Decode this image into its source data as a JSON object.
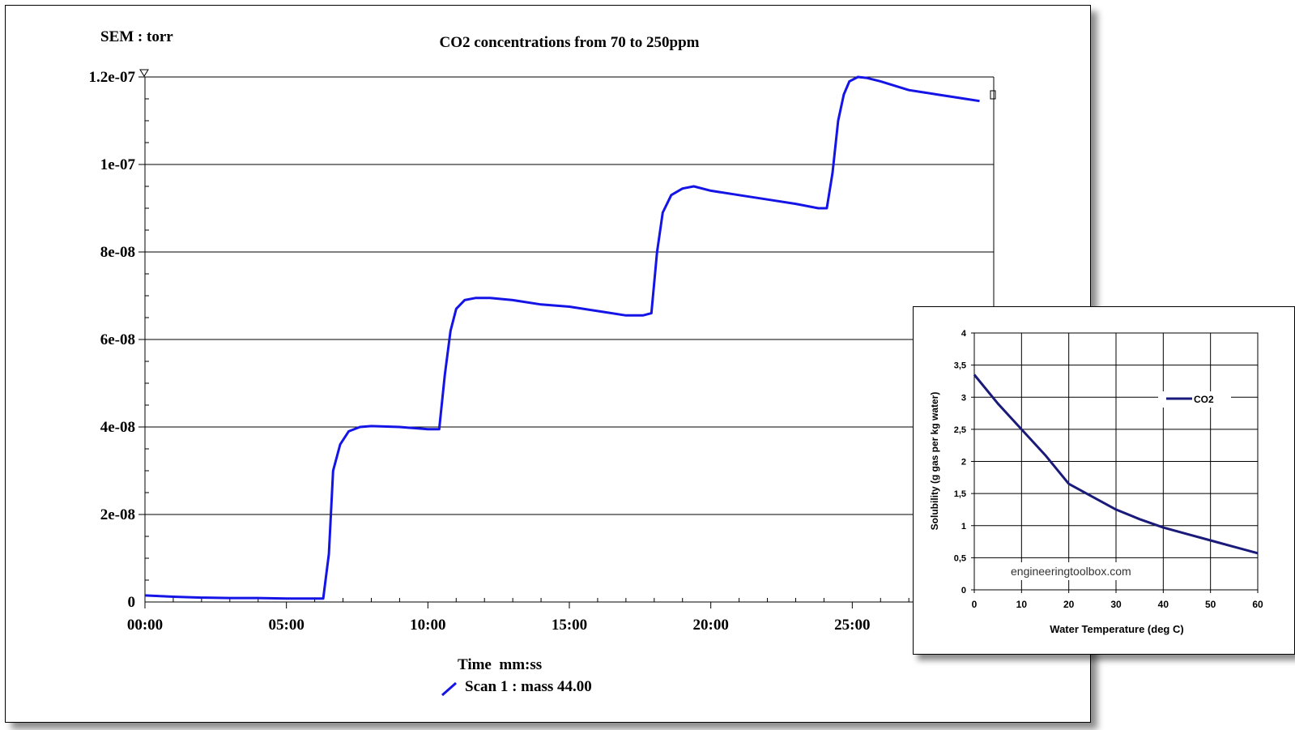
{
  "chart_data": [
    {
      "type": "line",
      "title": "CO2 concentrations from 70 to 250ppm",
      "corner_label": "SEM : torr",
      "xlabel": "Time  mm:ss",
      "ylabel": "",
      "x_unit": "minutes",
      "xlim": [
        0,
        30
      ],
      "ylim": [
        0,
        1.2e-07
      ],
      "x_ticks": [
        0,
        5,
        10,
        15,
        20,
        25
      ],
      "x_tick_labels": [
        "00:00",
        "05:00",
        "10:00",
        "15:00",
        "20:00",
        "25:00"
      ],
      "y_ticks": [
        0,
        2e-08,
        4e-08,
        6e-08,
        8e-08,
        1e-07,
        1.2e-07
      ],
      "y_tick_labels": [
        "0",
        "2e-08",
        "4e-08",
        "6e-08",
        "8e-08",
        "1e-07",
        "1.2e-07"
      ],
      "grid": "horizontal",
      "legend_position": "bottom-center",
      "series": [
        {
          "name": "Scan 1 : mass 44.00",
          "color": "#1414e6",
          "x": [
            0,
            1,
            2,
            3,
            4,
            5,
            5.9,
            6.3,
            6.5,
            6.65,
            6.9,
            7.2,
            7.6,
            8.0,
            9.0,
            10.0,
            10.4,
            10.6,
            10.8,
            11.0,
            11.3,
            11.7,
            12.2,
            13.0,
            14.0,
            15.0,
            16.0,
            17.0,
            17.6,
            17.9,
            18.1,
            18.3,
            18.6,
            19.0,
            19.4,
            20.0,
            21.0,
            22.0,
            23.0,
            23.8,
            24.1,
            24.3,
            24.5,
            24.7,
            24.9,
            25.2,
            25.5,
            26.0,
            27.0,
            28.0,
            29.0,
            29.5
          ],
          "y": [
            1.5e-09,
            1.2e-09,
            1e-09,
            9e-10,
            9e-10,
            8e-10,
            8e-10,
            8e-10,
            1.1e-08,
            3e-08,
            3.6e-08,
            3.9e-08,
            4e-08,
            4.02e-08,
            4e-08,
            3.95e-08,
            3.95e-08,
            5.2e-08,
            6.2e-08,
            6.7e-08,
            6.9e-08,
            6.95e-08,
            6.95e-08,
            6.9e-08,
            6.8e-08,
            6.75e-08,
            6.65e-08,
            6.55e-08,
            6.55e-08,
            6.6e-08,
            8e-08,
            8.9e-08,
            9.3e-08,
            9.45e-08,
            9.5e-08,
            9.4e-08,
            9.3e-08,
            9.2e-08,
            9.1e-08,
            9e-08,
            9e-08,
            9.8e-08,
            1.1e-07,
            1.16e-07,
            1.19e-07,
            1.2e-07,
            1.198e-07,
            1.19e-07,
            1.17e-07,
            1.16e-07,
            1.15e-07,
            1.145e-07
          ]
        }
      ]
    },
    {
      "type": "line",
      "title": "",
      "xlabel": "Water Temperature (deg C)",
      "ylabel": "Solubility (g gas per kg water)",
      "xlim": [
        0,
        60
      ],
      "ylim": [
        0,
        4
      ],
      "x_ticks": [
        0,
        10,
        20,
        30,
        40,
        50,
        60
      ],
      "x_tick_labels": [
        "0",
        "10",
        "20",
        "30",
        "40",
        "50",
        "60"
      ],
      "y_ticks": [
        0,
        0.5,
        1,
        1.5,
        2,
        2.5,
        3,
        3.5,
        4
      ],
      "y_tick_labels": [
        "0",
        "0,5",
        "1",
        "1,5",
        "2",
        "2,5",
        "3",
        "3,5",
        "4"
      ],
      "grid": "both",
      "legend_position": "right",
      "annotation": "engineeringtoolbox.com",
      "series": [
        {
          "name": "CO2",
          "color": "#1a1a7a",
          "x": [
            0,
            5,
            10,
            15,
            20,
            25,
            30,
            35,
            40,
            45,
            50,
            55,
            60
          ],
          "y": [
            3.35,
            2.9,
            2.5,
            2.1,
            1.65,
            1.45,
            1.25,
            1.1,
            0.97,
            0.87,
            0.77,
            0.67,
            0.57
          ]
        }
      ]
    }
  ]
}
